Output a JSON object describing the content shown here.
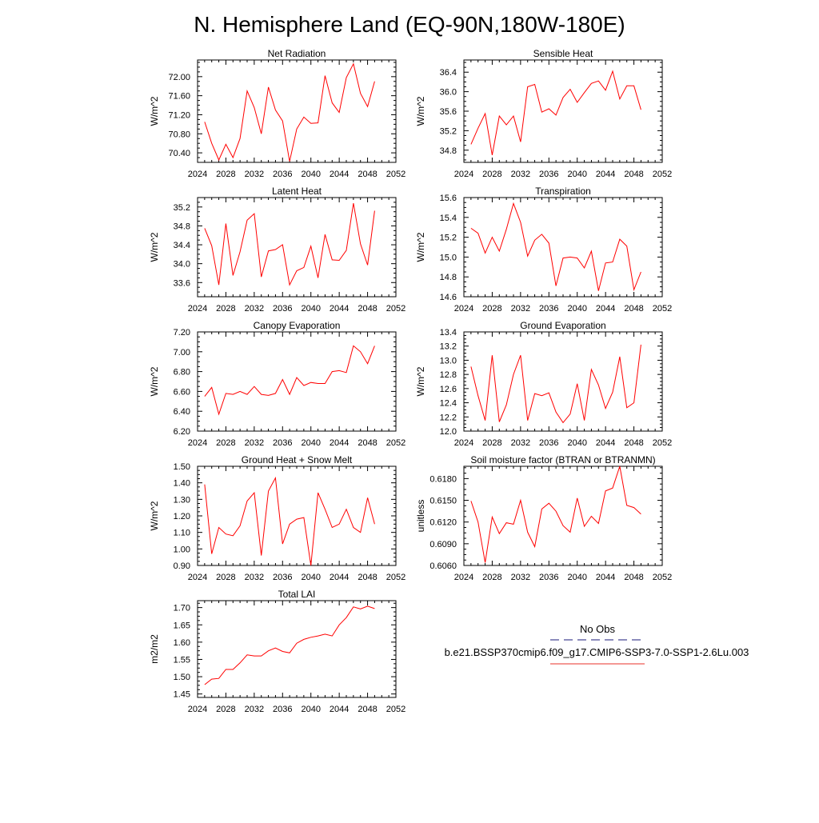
{
  "figure": {
    "title": "N. Hemisphere Land (EQ-90N,180W-180E)"
  },
  "legend": {
    "obs_label": "No Obs",
    "model_label": "b.e21.BSSP370cmip6.f09_g17.CMIP6-SSP3-7.0-SSP1-2.6Lu.003",
    "obs_color": "#1a1a7a",
    "model_color": "#e8302a"
  },
  "colors": {
    "series": "#ff0000",
    "axis": "#000000"
  },
  "chart_data": [
    {
      "type": "line",
      "title": "Net Radiation",
      "ylabel": "W/m^2",
      "xlim": [
        2024,
        2052
      ],
      "xticks": [
        "2024",
        "2028",
        "2032",
        "2036",
        "2040",
        "2044",
        "2048",
        "2052"
      ],
      "ylim": [
        70.2,
        72.35
      ],
      "yticks": [
        "70.40",
        "70.80",
        "71.20",
        "71.60",
        "72.00"
      ],
      "x": [
        2025,
        2026,
        2027,
        2028,
        2029,
        2030,
        2031,
        2032,
        2033,
        2034,
        2035,
        2036,
        2037,
        2038,
        2039,
        2040,
        2041,
        2042,
        2043,
        2044,
        2045,
        2046,
        2047,
        2048,
        2049
      ],
      "values": [
        71.05,
        70.6,
        70.25,
        70.58,
        70.3,
        70.7,
        71.7,
        71.35,
        70.8,
        71.78,
        71.3,
        71.07,
        70.22,
        70.9,
        71.15,
        71.02,
        71.03,
        72.02,
        71.45,
        71.25,
        71.98,
        72.27,
        71.65,
        71.37,
        71.9
      ]
    },
    {
      "type": "line",
      "title": "Sensible Heat",
      "ylabel": "W/m^2",
      "xlim": [
        2024,
        2052
      ],
      "xticks": [
        "2024",
        "2028",
        "2032",
        "2036",
        "2040",
        "2044",
        "2048",
        "2052"
      ],
      "ylim": [
        34.55,
        36.65
      ],
      "yticks": [
        "34.8",
        "35.2",
        "35.6",
        "36.0",
        "36.4"
      ],
      "x": [
        2025,
        2026,
        2027,
        2028,
        2029,
        2030,
        2031,
        2032,
        2033,
        2034,
        2035,
        2036,
        2037,
        2038,
        2039,
        2040,
        2041,
        2042,
        2043,
        2044,
        2045,
        2046,
        2047,
        2048,
        2049
      ],
      "values": [
        34.92,
        35.25,
        35.55,
        34.7,
        35.5,
        35.32,
        35.5,
        34.97,
        36.1,
        36.15,
        35.58,
        35.65,
        35.52,
        35.88,
        36.05,
        35.78,
        35.98,
        36.17,
        36.22,
        36.03,
        36.42,
        35.85,
        36.12,
        36.12,
        35.63
      ]
    },
    {
      "type": "line",
      "title": "Latent Heat",
      "ylabel": "W/m^2",
      "xlim": [
        2024,
        2052
      ],
      "xticks": [
        "2024",
        "2028",
        "2032",
        "2036",
        "2040",
        "2044",
        "2048",
        "2052"
      ],
      "ylim": [
        33.3,
        35.4
      ],
      "yticks": [
        "33.6",
        "34.0",
        "34.4",
        "34.8",
        "35.2"
      ],
      "x": [
        2025,
        2026,
        2027,
        2028,
        2029,
        2030,
        2031,
        2032,
        2033,
        2034,
        2035,
        2036,
        2037,
        2038,
        2039,
        2040,
        2041,
        2042,
        2043,
        2044,
        2045,
        2046,
        2047,
        2048,
        2049
      ],
      "values": [
        34.75,
        34.38,
        33.55,
        34.85,
        33.75,
        34.25,
        34.92,
        35.06,
        33.72,
        34.27,
        34.3,
        34.4,
        33.55,
        33.85,
        33.92,
        34.37,
        33.7,
        34.62,
        34.08,
        34.07,
        34.28,
        35.28,
        34.42,
        33.97,
        35.12
      ]
    },
    {
      "type": "line",
      "title": "Transpiration",
      "ylabel": "W/m^2",
      "xlim": [
        2024,
        2052
      ],
      "xticks": [
        "2024",
        "2028",
        "2032",
        "2036",
        "2040",
        "2044",
        "2048",
        "2052"
      ],
      "ylim": [
        14.6,
        15.6
      ],
      "yticks": [
        "14.6",
        "14.8",
        "15.0",
        "15.2",
        "15.4",
        "15.6"
      ],
      "x": [
        2025,
        2026,
        2027,
        2028,
        2029,
        2030,
        2031,
        2032,
        2033,
        2034,
        2035,
        2036,
        2037,
        2038,
        2039,
        2040,
        2041,
        2042,
        2043,
        2044,
        2045,
        2046,
        2047,
        2048,
        2049
      ],
      "values": [
        15.29,
        15.24,
        15.04,
        15.2,
        15.06,
        15.28,
        15.54,
        15.35,
        15.01,
        15.17,
        15.23,
        15.14,
        14.71,
        14.99,
        15.0,
        14.99,
        14.89,
        15.06,
        14.66,
        14.94,
        14.95,
        15.18,
        15.11,
        14.67,
        14.85
      ]
    },
    {
      "type": "line",
      "title": "Canopy Evaporation",
      "ylabel": "W/m^2",
      "xlim": [
        2024,
        2052
      ],
      "xticks": [
        "2024",
        "2028",
        "2032",
        "2036",
        "2040",
        "2044",
        "2048",
        "2052"
      ],
      "ylim": [
        6.2,
        7.2
      ],
      "yticks": [
        "6.20",
        "6.40",
        "6.60",
        "6.80",
        "7.00",
        "7.20"
      ],
      "x": [
        2025,
        2026,
        2027,
        2028,
        2029,
        2030,
        2031,
        2032,
        2033,
        2034,
        2035,
        2036,
        2037,
        2038,
        2039,
        2040,
        2041,
        2042,
        2043,
        2044,
        2045,
        2046,
        2047,
        2048,
        2049
      ],
      "values": [
        6.55,
        6.64,
        6.37,
        6.58,
        6.57,
        6.6,
        6.57,
        6.65,
        6.57,
        6.56,
        6.58,
        6.72,
        6.57,
        6.74,
        6.66,
        6.69,
        6.68,
        6.68,
        6.8,
        6.81,
        6.79,
        7.06,
        7.0,
        6.88,
        7.06
      ]
    },
    {
      "type": "line",
      "title": "Ground Evaporation",
      "ylabel": "W/m^2",
      "xlim": [
        2024,
        2052
      ],
      "xticks": [
        "2024",
        "2028",
        "2032",
        "2036",
        "2040",
        "2044",
        "2048",
        "2052"
      ],
      "ylim": [
        12.0,
        13.4
      ],
      "yticks": [
        "12.0",
        "12.2",
        "12.4",
        "12.6",
        "12.8",
        "13.0",
        "13.2",
        "13.4"
      ],
      "x": [
        2025,
        2026,
        2027,
        2028,
        2029,
        2030,
        2031,
        2032,
        2033,
        2034,
        2035,
        2036,
        2037,
        2038,
        2039,
        2040,
        2041,
        2042,
        2043,
        2044,
        2045,
        2046,
        2047,
        2048,
        2049
      ],
      "values": [
        12.91,
        12.5,
        12.15,
        13.07,
        12.13,
        12.37,
        12.8,
        13.07,
        12.15,
        12.53,
        12.5,
        12.54,
        12.27,
        12.12,
        12.24,
        12.67,
        12.15,
        12.87,
        12.65,
        12.32,
        12.55,
        13.05,
        12.33,
        12.4,
        13.22
      ]
    },
    {
      "type": "line",
      "title": "Ground Heat + Snow Melt",
      "ylabel": "W/m^2",
      "xlim": [
        2024,
        2052
      ],
      "xticks": [
        "2024",
        "2028",
        "2032",
        "2036",
        "2040",
        "2044",
        "2048",
        "2052"
      ],
      "ylim": [
        0.9,
        1.5
      ],
      "yticks": [
        "0.90",
        "1.00",
        "1.10",
        "1.20",
        "1.30",
        "1.40",
        "1.50"
      ],
      "x": [
        2025,
        2026,
        2027,
        2028,
        2029,
        2030,
        2031,
        2032,
        2033,
        2034,
        2035,
        2036,
        2037,
        2038,
        2039,
        2040,
        2041,
        2042,
        2043,
        2044,
        2045,
        2046,
        2047,
        2048,
        2049
      ],
      "values": [
        1.39,
        0.97,
        1.13,
        1.09,
        1.08,
        1.14,
        1.29,
        1.34,
        0.96,
        1.35,
        1.43,
        1.03,
        1.15,
        1.18,
        1.19,
        0.9,
        1.34,
        1.24,
        1.13,
        1.15,
        1.24,
        1.13,
        1.1,
        1.31,
        1.15
      ]
    },
    {
      "type": "line",
      "title": "Soil moisture factor (BTRAN or BTRANMN)",
      "ylabel": "unitless",
      "xlim": [
        2024,
        2052
      ],
      "xticks": [
        "2024",
        "2028",
        "2032",
        "2036",
        "2040",
        "2044",
        "2048",
        "2052"
      ],
      "ylim": [
        0.606,
        0.6197
      ],
      "yticks": [
        "0.6060",
        "0.6090",
        "0.6120",
        "0.6150",
        "0.6180"
      ],
      "x": [
        2025,
        2026,
        2027,
        2028,
        2029,
        2030,
        2031,
        2032,
        2033,
        2034,
        2035,
        2036,
        2037,
        2038,
        2039,
        2040,
        2041,
        2042,
        2043,
        2044,
        2045,
        2046,
        2047,
        2048,
        2049
      ],
      "values": [
        0.6149,
        0.612,
        0.6064,
        0.6127,
        0.6104,
        0.6119,
        0.6117,
        0.615,
        0.6106,
        0.6086,
        0.6138,
        0.6146,
        0.6135,
        0.6115,
        0.6106,
        0.6153,
        0.6114,
        0.6128,
        0.6118,
        0.6163,
        0.6167,
        0.6197,
        0.6143,
        0.614,
        0.6131
      ]
    },
    {
      "type": "line",
      "title": "Total LAI",
      "ylabel": "m2/m2",
      "xlim": [
        2024,
        2052
      ],
      "xticks": [
        "2024",
        "2028",
        "2032",
        "2036",
        "2040",
        "2044",
        "2048",
        "2052"
      ],
      "ylim": [
        1.44,
        1.72
      ],
      "yticks": [
        "1.45",
        "1.50",
        "1.55",
        "1.60",
        "1.65",
        "1.70"
      ],
      "x": [
        2025,
        2026,
        2027,
        2028,
        2029,
        2030,
        2031,
        2032,
        2033,
        2034,
        2035,
        2036,
        2037,
        2038,
        2039,
        2040,
        2041,
        2042,
        2043,
        2044,
        2045,
        2046,
        2047,
        2048,
        2049
      ],
      "values": [
        1.477,
        1.493,
        1.495,
        1.521,
        1.521,
        1.54,
        1.563,
        1.56,
        1.56,
        1.575,
        1.583,
        1.573,
        1.569,
        1.597,
        1.608,
        1.614,
        1.618,
        1.623,
        1.618,
        1.65,
        1.671,
        1.702,
        1.696,
        1.704,
        1.697
      ]
    }
  ]
}
